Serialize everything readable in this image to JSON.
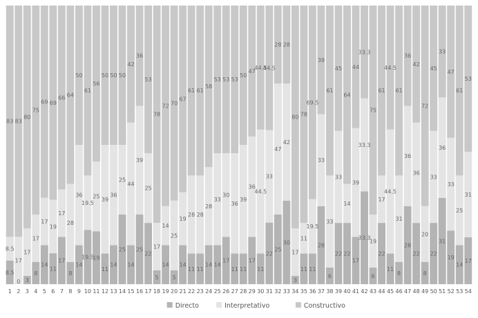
{
  "chart_data": {
    "type": "bar",
    "stacked": true,
    "normalized": true,
    "categories": [
      "1",
      "2",
      "3",
      "4",
      "5",
      "6",
      "7",
      "8",
      "9",
      "10",
      "11",
      "12",
      "13",
      "14",
      "15",
      "16",
      "17",
      "18",
      "19",
      "20",
      "21",
      "22",
      "23",
      "24",
      "25",
      "26",
      "27",
      "28",
      "29",
      "30",
      "31",
      "32",
      "33",
      "34",
      "35",
      "36",
      "37",
      "38",
      "39",
      "40",
      "41",
      "42",
      "43",
      "44",
      "45",
      "46",
      "47",
      "48",
      "49",
      "50",
      "51",
      "52",
      "53",
      "54"
    ],
    "series": [
      {
        "name": "Directo",
        "color": "#b4b4b4",
        "values": [
          8.5,
          0,
          3,
          8,
          14,
          11,
          17,
          8,
          14,
          19.5,
          19,
          11,
          14,
          25,
          14,
          25,
          22,
          5,
          14,
          5,
          14,
          11,
          11,
          14,
          14,
          17,
          11,
          11,
          17,
          11,
          22,
          25,
          30,
          3,
          11,
          11,
          28,
          6,
          22,
          22,
          17,
          33.3,
          6,
          22,
          11,
          8,
          28,
          22,
          8,
          22,
          31,
          19,
          14,
          17
        ]
      },
      {
        "name": "Interpretativo",
        "color": "#e4e4e4",
        "values": [
          8.5,
          17,
          17,
          17,
          17,
          19,
          17,
          28,
          36,
          19.5,
          25,
          39,
          36,
          25,
          44,
          39,
          25,
          17,
          14,
          25,
          19,
          28,
          28,
          28,
          33,
          30,
          36,
          39,
          36,
          44.5,
          33,
          47,
          42,
          17,
          11,
          19.5,
          33,
          33,
          33,
          14,
          39,
          33.3,
          19,
          17,
          44.5,
          31,
          36,
          36,
          20,
          33,
          36,
          33,
          25,
          31
        ]
      },
      {
        "name": "Constructivo",
        "color": "#c8c8c8",
        "values": [
          83,
          83,
          80,
          75,
          69,
          69,
          66,
          64,
          50,
          61,
          56,
          50,
          50,
          50,
          42,
          36,
          53,
          78,
          72,
          70,
          67,
          61,
          61,
          58,
          53,
          53,
          53,
          50,
          47,
          44.5,
          44.5,
          28,
          28,
          80,
          78,
          69.5,
          39,
          61,
          45,
          64,
          44,
          33.3,
          75,
          61,
          44.5,
          61,
          36,
          42,
          72,
          45,
          33,
          47,
          61,
          53
        ]
      }
    ],
    "labels": [
      [
        "8.5",
        "0",
        "3",
        "8",
        "14",
        "11",
        "17",
        "8",
        "14",
        "19.5",
        "19",
        "11",
        "14",
        "25",
        "14",
        "25",
        "22",
        "5",
        "14",
        "5",
        "14",
        "11",
        "11",
        "14",
        "14",
        "17",
        "11",
        "11",
        "17",
        "11",
        "22",
        "25",
        "30",
        "3",
        "11",
        "11",
        "28",
        "6",
        "22",
        "22",
        "17",
        "33.3",
        "6",
        "22",
        "11",
        "8",
        "28",
        "22",
        "8",
        "22",
        "31",
        "19",
        "14",
        "17"
      ],
      [
        "8.5",
        "17",
        "17",
        "17",
        "17",
        "19",
        "17",
        "28",
        "36",
        "19.5",
        "25",
        "39",
        "36",
        "25",
        "44",
        "39",
        "25",
        "17",
        "14",
        "25",
        "19",
        "28",
        "28",
        "28",
        "33",
        "30",
        "36",
        "39",
        "36",
        "44.5",
        "33",
        "47",
        "42",
        "17",
        "11",
        "19.5",
        "33",
        "33",
        "33",
        "14",
        "39",
        "33.3",
        "19",
        "17",
        "44.5",
        "31",
        "36",
        "36",
        "20",
        "33",
        "36",
        "33",
        "25",
        "31"
      ],
      [
        "83",
        "83",
        "80",
        "75",
        "69",
        "69",
        "66",
        "64",
        "50",
        "61",
        "56",
        "50",
        "50",
        "50",
        "42",
        "36",
        "53",
        "78",
        "72",
        "70",
        "67",
        "61",
        "61",
        "58",
        "53",
        "53",
        "53",
        "50",
        "47",
        "44.5",
        "44.5",
        "28",
        "28",
        "80",
        "78",
        "69.5",
        "39",
        "61",
        "45",
        "64",
        "44",
        "33.3",
        "75",
        "61",
        "44.5",
        "61",
        "36",
        "42",
        "72",
        "45",
        "33",
        "47",
        "61",
        "53"
      ]
    ],
    "title": "",
    "xlabel": "",
    "ylabel": "",
    "legend_position": "bottom-center",
    "grid": false
  }
}
